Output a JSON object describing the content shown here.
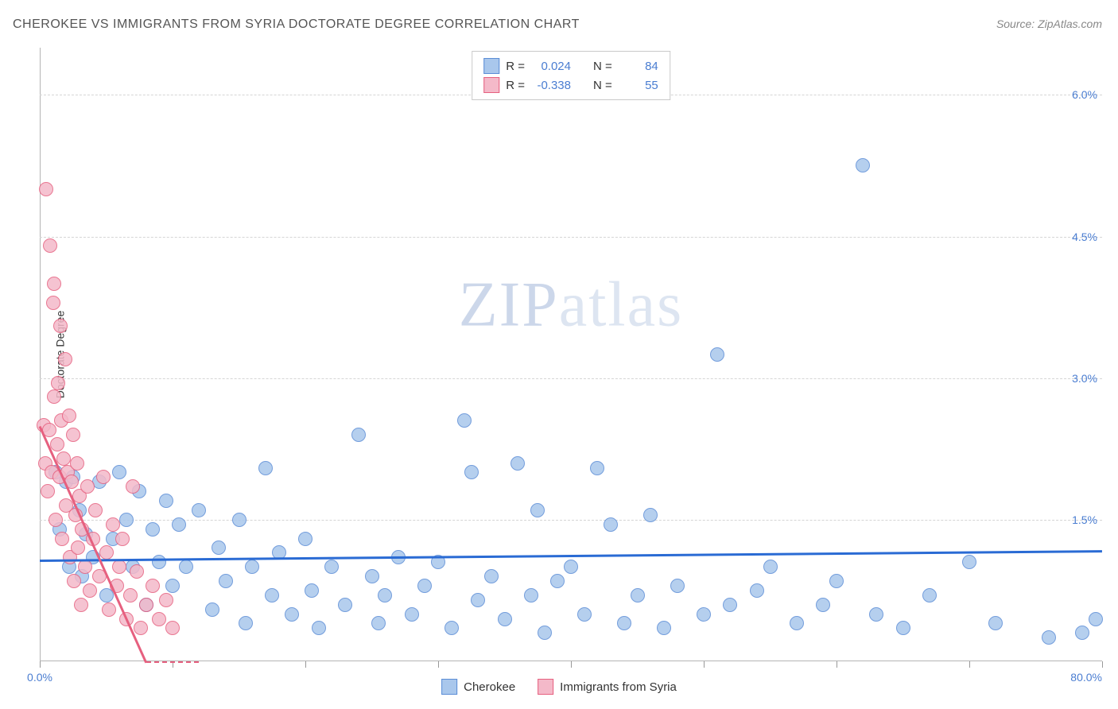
{
  "title": "CHEROKEE VS IMMIGRANTS FROM SYRIA DOCTORATE DEGREE CORRELATION CHART",
  "source": "Source: ZipAtlas.com",
  "ylabel": "Doctorate Degree",
  "watermark_zip": "ZIP",
  "watermark_atlas": "atlas",
  "chart": {
    "type": "scatter",
    "background_color": "#ffffff",
    "grid_color": "#d5d5d5",
    "axis_color": "#b5b5b5",
    "xlim": [
      0,
      80
    ],
    "ylim": [
      0,
      6.5
    ],
    "yticks": [
      1.5,
      3.0,
      4.5,
      6.0
    ],
    "ytick_labels": [
      "1.5%",
      "3.0%",
      "4.5%",
      "6.0%"
    ],
    "ytick_color": "#4a7dd1",
    "xticks": [
      0,
      10,
      20,
      30,
      40,
      50,
      60,
      70,
      80
    ],
    "x_start_label": "0.0%",
    "x_end_label": "80.0%",
    "marker_radius": 9,
    "marker_stroke_width": 1.5,
    "marker_fill_opacity": 0.25,
    "series": [
      {
        "name": "Cherokee",
        "fill": "#a9c7ec",
        "stroke": "#5b8dd6",
        "r_value": "0.024",
        "n_value": "84",
        "trend": {
          "y_at_x0": 1.08,
          "y_at_x80": 1.18,
          "color": "#2a6bd4",
          "width": 3
        },
        "points": [
          [
            1.2,
            2.0
          ],
          [
            1.5,
            1.4
          ],
          [
            2.0,
            1.9
          ],
          [
            2.2,
            1.0
          ],
          [
            2.5,
            1.95
          ],
          [
            3.0,
            1.6
          ],
          [
            3.2,
            0.9
          ],
          [
            3.5,
            1.35
          ],
          [
            4.0,
            1.1
          ],
          [
            4.5,
            1.9
          ],
          [
            5.0,
            0.7
          ],
          [
            5.5,
            1.3
          ],
          [
            6.0,
            2.0
          ],
          [
            6.5,
            1.5
          ],
          [
            7.0,
            1.0
          ],
          [
            7.5,
            1.8
          ],
          [
            8.0,
            0.6
          ],
          [
            8.5,
            1.4
          ],
          [
            9.0,
            1.05
          ],
          [
            9.5,
            1.7
          ],
          [
            10.0,
            0.8
          ],
          [
            10.5,
            1.45
          ],
          [
            11.0,
            1.0
          ],
          [
            12.0,
            1.6
          ],
          [
            13.0,
            0.55
          ],
          [
            13.5,
            1.2
          ],
          [
            14.0,
            0.85
          ],
          [
            15.0,
            1.5
          ],
          [
            15.5,
            0.4
          ],
          [
            16.0,
            1.0
          ],
          [
            17.0,
            2.05
          ],
          [
            17.5,
            0.7
          ],
          [
            18.0,
            1.15
          ],
          [
            19.0,
            0.5
          ],
          [
            20.0,
            1.3
          ],
          [
            20.5,
            0.75
          ],
          [
            21.0,
            0.35
          ],
          [
            22.0,
            1.0
          ],
          [
            23.0,
            0.6
          ],
          [
            24.0,
            2.4
          ],
          [
            25.0,
            0.9
          ],
          [
            25.5,
            0.4
          ],
          [
            26.0,
            0.7
          ],
          [
            27.0,
            1.1
          ],
          [
            28.0,
            0.5
          ],
          [
            29.0,
            0.8
          ],
          [
            30.0,
            1.05
          ],
          [
            31.0,
            0.35
          ],
          [
            32.0,
            2.55
          ],
          [
            32.5,
            2.0
          ],
          [
            33.0,
            0.65
          ],
          [
            34.0,
            0.9
          ],
          [
            35.0,
            0.45
          ],
          [
            36.0,
            2.1
          ],
          [
            37.0,
            0.7
          ],
          [
            37.5,
            1.6
          ],
          [
            38.0,
            0.3
          ],
          [
            39.0,
            0.85
          ],
          [
            40.0,
            1.0
          ],
          [
            41.0,
            0.5
          ],
          [
            42.0,
            2.05
          ],
          [
            43.0,
            1.45
          ],
          [
            44.0,
            0.4
          ],
          [
            45.0,
            0.7
          ],
          [
            46.0,
            1.55
          ],
          [
            47.0,
            0.35
          ],
          [
            48.0,
            0.8
          ],
          [
            50.0,
            0.5
          ],
          [
            51.0,
            3.25
          ],
          [
            52.0,
            0.6
          ],
          [
            54.0,
            0.75
          ],
          [
            55.0,
            1.0
          ],
          [
            57.0,
            0.4
          ],
          [
            59.0,
            0.6
          ],
          [
            60.0,
            0.85
          ],
          [
            62.0,
            5.25
          ],
          [
            63.0,
            0.5
          ],
          [
            65.0,
            0.35
          ],
          [
            67.0,
            0.7
          ],
          [
            70.0,
            1.05
          ],
          [
            72.0,
            0.4
          ],
          [
            76.0,
            0.25
          ],
          [
            78.5,
            0.3
          ],
          [
            79.5,
            0.45
          ]
        ]
      },
      {
        "name": "Immigrants from Syria",
        "fill": "#f4b9c9",
        "stroke": "#e6607f",
        "r_value": "-0.338",
        "n_value": "55",
        "trend": {
          "y_at_x0": 2.5,
          "y_at_x8": 0.0,
          "x_end": 8,
          "color": "#e6607f",
          "width": 3,
          "dash_extend_x": 12
        },
        "points": [
          [
            0.3,
            2.5
          ],
          [
            0.4,
            2.1
          ],
          [
            0.5,
            5.0
          ],
          [
            0.6,
            1.8
          ],
          [
            0.7,
            2.45
          ],
          [
            0.8,
            4.4
          ],
          [
            0.9,
            2.0
          ],
          [
            1.0,
            3.8
          ],
          [
            1.05,
            2.8
          ],
          [
            1.1,
            4.0
          ],
          [
            1.2,
            1.5
          ],
          [
            1.3,
            2.3
          ],
          [
            1.4,
            2.95
          ],
          [
            1.5,
            1.95
          ],
          [
            1.55,
            3.55
          ],
          [
            1.6,
            2.55
          ],
          [
            1.7,
            1.3
          ],
          [
            1.8,
            2.15
          ],
          [
            1.9,
            3.2
          ],
          [
            2.0,
            1.65
          ],
          [
            2.1,
            2.0
          ],
          [
            2.2,
            2.6
          ],
          [
            2.3,
            1.1
          ],
          [
            2.4,
            1.9
          ],
          [
            2.5,
            2.4
          ],
          [
            2.6,
            0.85
          ],
          [
            2.7,
            1.55
          ],
          [
            2.8,
            2.1
          ],
          [
            2.9,
            1.2
          ],
          [
            3.0,
            1.75
          ],
          [
            3.1,
            0.6
          ],
          [
            3.2,
            1.4
          ],
          [
            3.4,
            1.0
          ],
          [
            3.6,
            1.85
          ],
          [
            3.8,
            0.75
          ],
          [
            4.0,
            1.3
          ],
          [
            4.2,
            1.6
          ],
          [
            4.5,
            0.9
          ],
          [
            4.8,
            1.95
          ],
          [
            5.0,
            1.15
          ],
          [
            5.2,
            0.55
          ],
          [
            5.5,
            1.45
          ],
          [
            5.8,
            0.8
          ],
          [
            6.0,
            1.0
          ],
          [
            6.2,
            1.3
          ],
          [
            6.5,
            0.45
          ],
          [
            6.8,
            0.7
          ],
          [
            7.0,
            1.85
          ],
          [
            7.3,
            0.95
          ],
          [
            7.6,
            0.35
          ],
          [
            8.0,
            0.6
          ],
          [
            8.5,
            0.8
          ],
          [
            9.0,
            0.45
          ],
          [
            9.5,
            0.65
          ],
          [
            10.0,
            0.35
          ]
        ]
      }
    ]
  },
  "stats_legend": {
    "r_label": "R =",
    "n_label": "N ="
  },
  "bottom_legend": {
    "items": [
      "Cherokee",
      "Immigrants from Syria"
    ]
  }
}
